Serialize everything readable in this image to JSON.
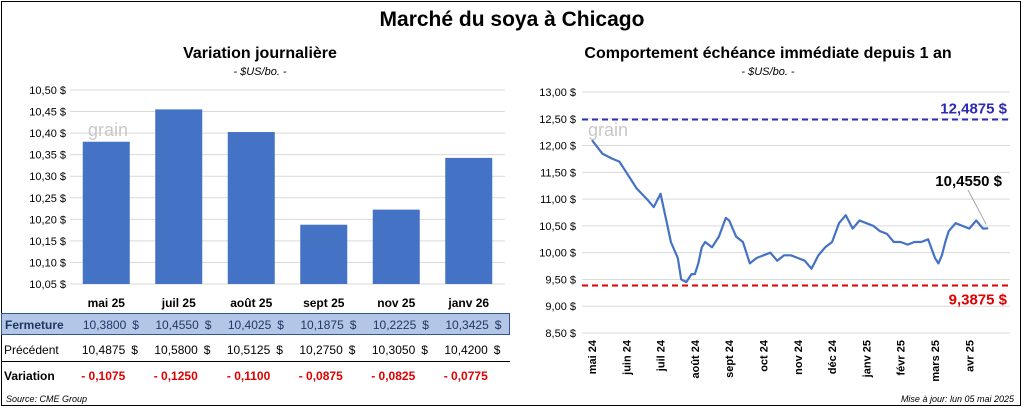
{
  "title": "Marché du soya à Chicago",
  "left": {
    "title": "Variation journalière",
    "unit": "- $US/bo. -",
    "watermark": "grain",
    "chart_data": {
      "type": "bar",
      "categories": [
        "mai 25",
        "juil 25",
        "août 25",
        "sept 25",
        "nov 25",
        "janv 26"
      ],
      "values": [
        10.38,
        10.455,
        10.4025,
        10.1875,
        10.2225,
        10.3425
      ],
      "ylim": [
        10.05,
        10.5
      ],
      "yticks": [
        "10,05 $",
        "10,10 $",
        "10,15 $",
        "10,20 $",
        "10,25 $",
        "10,30 $",
        "10,35 $",
        "10,40 $",
        "10,45 $",
        "10,50 $"
      ],
      "color": "#4472c4"
    },
    "table": {
      "rows": [
        {
          "label": "Fermeture",
          "values": [
            "10,3800",
            "10,4550",
            "10,4025",
            "10,1875",
            "10,2225",
            "10,3425"
          ],
          "unit": "$"
        },
        {
          "label": "Précédent",
          "values": [
            "10,4875",
            "10,5800",
            "10,5125",
            "10,2750",
            "10,3050",
            "10,4200"
          ],
          "unit": "$"
        },
        {
          "label": "Variation",
          "values": [
            "- 0,1075",
            "- 0,1250",
            "- 0,1100",
            "- 0,0875",
            "- 0,0825",
            "- 0,0775"
          ],
          "unit": ""
        }
      ]
    }
  },
  "right": {
    "title": "Comportement échéance immédiate depuis 1 an",
    "unit": "- $US/bo. -",
    "watermark": "grain",
    "chart_data": {
      "type": "line",
      "ylim": [
        8.5,
        13.0
      ],
      "yticks": [
        "8,50 $",
        "9,00 $",
        "9,50 $",
        "10,00 $",
        "10,50 $",
        "11,00 $",
        "11,50 $",
        "12,00 $",
        "12,50 $",
        "13,00 $"
      ],
      "xticks": [
        "mai 24",
        "juin 24",
        "juil 24",
        "août 24",
        "sept 24",
        "oct 24",
        "nov 24",
        "déc 24",
        "janv 25",
        "févr 25",
        "mars 25",
        "avr 25"
      ],
      "series": [
        {
          "color": "#4472c4",
          "x": [
            0,
            0.3,
            0.6,
            0.8,
            1.0,
            1.3,
            1.6,
            1.8,
            2.0,
            2.1,
            2.2,
            2.3,
            2.5,
            2.6,
            2.75,
            2.9,
            3.0,
            3.1,
            3.2,
            3.3,
            3.5,
            3.7,
            3.9,
            4.0,
            4.2,
            4.4,
            4.5,
            4.6,
            4.8,
            5.0,
            5.2,
            5.4,
            5.6,
            5.8,
            6.0,
            6.2,
            6.4,
            6.6,
            6.8,
            7.0,
            7.2,
            7.4,
            7.6,
            7.8,
            8.0,
            8.2,
            8.4,
            8.6,
            8.8,
            9.0,
            9.2,
            9.4,
            9.6,
            9.8,
            10.0,
            10.1,
            10.2,
            10.3,
            10.4,
            10.6,
            10.8,
            11.0,
            11.2,
            11.4,
            11.55
          ],
          "y": [
            12.1,
            11.85,
            11.75,
            11.7,
            11.5,
            11.2,
            11.0,
            10.85,
            11.1,
            10.8,
            10.5,
            10.2,
            9.9,
            9.5,
            9.45,
            9.6,
            9.6,
            9.8,
            10.1,
            10.2,
            10.1,
            10.3,
            10.65,
            10.6,
            10.3,
            10.2,
            10.0,
            9.8,
            9.9,
            9.95,
            10.0,
            9.85,
            9.95,
            9.95,
            9.9,
            9.85,
            9.7,
            9.95,
            10.1,
            10.2,
            10.55,
            10.7,
            10.45,
            10.6,
            10.55,
            10.5,
            10.4,
            10.35,
            10.2,
            10.2,
            10.15,
            10.2,
            10.2,
            10.25,
            9.9,
            9.8,
            9.95,
            10.2,
            10.4,
            10.55,
            10.5,
            10.45,
            10.6,
            10.45,
            10.455
          ]
        }
      ],
      "annotations": [
        {
          "label": "12,4875 $",
          "value": 12.4875,
          "color": "#2b2bb5"
        },
        {
          "label": "9,3875 $",
          "value": 9.3875,
          "color": "#e00000"
        },
        {
          "label": "10,4550 $",
          "value": 10.455,
          "color": "#000000"
        }
      ]
    }
  },
  "footer": {
    "source": "Source: CME Group",
    "updated": "Mise à jour: lun 05 mai 2025"
  }
}
